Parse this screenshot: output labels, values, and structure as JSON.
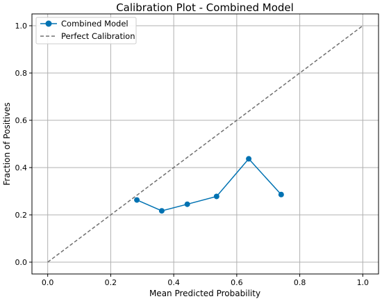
{
  "chart_data": {
    "type": "line",
    "title": "Calibration Plot - Combined Model",
    "xlabel": "Mean Predicted Probability",
    "ylabel": "Fraction of Positives",
    "xlim": [
      -0.05,
      1.05
    ],
    "ylim": [
      -0.05,
      1.05
    ],
    "xticks": [
      0.0,
      0.2,
      0.4,
      0.6,
      0.8,
      1.0
    ],
    "yticks": [
      0.0,
      0.2,
      0.4,
      0.6,
      0.8,
      1.0
    ],
    "xtick_labels": [
      "0.0",
      "0.2",
      "0.4",
      "0.6",
      "0.8",
      "1.0"
    ],
    "ytick_labels": [
      "0.0",
      "0.2",
      "0.4",
      "0.6",
      "0.8",
      "1.0"
    ],
    "grid": true,
    "legend_position": "top-left",
    "series": [
      {
        "name": "Combined Model",
        "style": "solid line with circle markers",
        "color": "#0072b2",
        "x": [
          0.283,
          0.362,
          0.443,
          0.536,
          0.638,
          0.741
        ],
        "y": [
          0.263,
          0.217,
          0.245,
          0.278,
          0.437,
          0.286
        ]
      },
      {
        "name": "Perfect Calibration",
        "style": "dashed",
        "color": "#707070",
        "x": [
          0.0,
          1.0
        ],
        "y": [
          0.0,
          1.0
        ]
      }
    ]
  }
}
